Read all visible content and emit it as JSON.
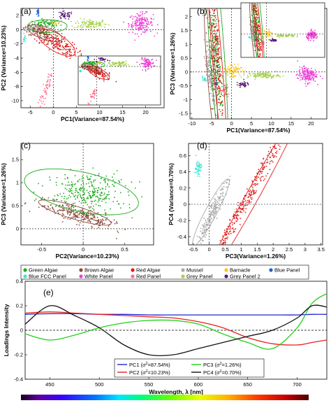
{
  "colors": {
    "green_algae": "#1faa1f",
    "brown_algae": "#8b4a3c",
    "red_algae": "#e01b1b",
    "mussel": "#a9a9a9",
    "barnacle": "#f5c518",
    "blue_panel": "#1f5fd0",
    "blue_fcc_panel": "#3ee6d2",
    "white_panel": "#ee3fd6",
    "red_panel": "#ff6f8e",
    "grey_panel": "#a6d24a",
    "grey_panel_2": "#5a1a7a",
    "pc1": "#1f24d6",
    "pc2": "#e8201b",
    "pc3": "#22d11a",
    "pc4": "#111111"
  },
  "legend": {
    "items": [
      {
        "label": "Green Algae",
        "color": "#1faa1f"
      },
      {
        "label": "Brown Algae",
        "color": "#8b4a3c"
      },
      {
        "label": "Red Algae",
        "color": "#e01b1b"
      },
      {
        "label": "Mussel",
        "color": "#a9a9a9"
      },
      {
        "label": "Barnacle",
        "color": "#f5c518"
      },
      {
        "label": "Blue Panel",
        "color": "#1f5fd0"
      },
      {
        "label": "Blue FCC Panel",
        "color": "#3ee6d2"
      },
      {
        "label": "White Panel",
        "color": "#ee3fd6"
      },
      {
        "label": "Red Panel",
        "color": "#ff6f8e"
      },
      {
        "label": "Grey Panel",
        "color": "#a6d24a"
      },
      {
        "label": "Grey Panel 2",
        "color": "#5a1a7a"
      }
    ]
  },
  "chart_data": [
    {
      "panel": "(a)",
      "type": "scatter",
      "xlabel": "PC1(Variance=87.54%)",
      "ylabel": "PC2 (Variance=10.23%)",
      "xticks": [
        -5,
        0,
        5,
        10,
        15,
        20
      ],
      "yticks": [
        -10,
        -8,
        -6,
        -4,
        -2,
        0,
        2
      ],
      "xlim": [
        -7,
        24
      ],
      "ylim": [
        -11,
        3
      ],
      "clusters": [
        {
          "name": "Green Algae",
          "cx": -1.5,
          "cy": 0.8,
          "sx": 1.5,
          "sy": 0.3,
          "rot": 0,
          "n": 80
        },
        {
          "name": "Grey Panel",
          "cx": 8,
          "cy": 0.8,
          "sx": 1.8,
          "sy": 0.35,
          "rot": 0,
          "n": 110
        },
        {
          "name": "White Panel",
          "cx": 19,
          "cy": 0.9,
          "sx": 1.3,
          "sy": 0.7,
          "rot": 0,
          "n": 170
        },
        {
          "name": "Grey Panel 2",
          "cx": 2.5,
          "cy": 2.0,
          "sx": 0.9,
          "sy": 0.3,
          "rot": 0,
          "n": 45
        },
        {
          "name": "Blue Panel",
          "cx": -3.3,
          "cy": 2.5,
          "sx": 0.12,
          "sy": 0.35,
          "rot": 0,
          "n": 25
        },
        {
          "name": "Mussel",
          "cx": -4.3,
          "cy": 0.1,
          "sx": 0.9,
          "sy": 0.25,
          "rot": 0,
          "n": 60
        },
        {
          "name": "Blue FCC Panel",
          "cx": -6.2,
          "cy": -1.3,
          "sx": 0.2,
          "sy": 0.2,
          "rot": 0,
          "n": 12
        },
        {
          "name": "Red Panel",
          "cx": -1.5,
          "cy": -8.2,
          "sx": 0.35,
          "sy": 1.3,
          "rot": -30,
          "n": 60
        },
        {
          "name": "Brown Algae",
          "cx": -2.3,
          "cy": -0.6,
          "sx": 2.0,
          "sy": 0.45,
          "rot": -12,
          "n": 120
        },
        {
          "name": "Red Algae",
          "cx": 0.6,
          "cy": -1.9,
          "sx": 2.4,
          "sy": 0.6,
          "rot": -18,
          "n": 170
        },
        {
          "name": "Barnacle",
          "cx": 0.5,
          "cy": 0.9,
          "sx": 0.6,
          "sy": 0.2,
          "rot": 0,
          "n": 12
        }
      ],
      "ellipses": [
        {
          "color": "green",
          "cx": -1.3,
          "cy": 0.5,
          "rx": 4.3,
          "ry": 0.9,
          "rot": 0
        },
        {
          "color": "brown",
          "cx": -1.8,
          "cy": -0.5,
          "rx": 3.8,
          "ry": 0.9,
          "rot": -12
        },
        {
          "color": "red",
          "cx": 0.6,
          "cy": -1.8,
          "rx": 4.4,
          "ry": 1.3,
          "rot": -20
        }
      ],
      "inset": true
    },
    {
      "panel": "(b)",
      "type": "scatter",
      "xlabel": "PC1(Variance=87.54%)",
      "ylabel": "PC3 (Variance=1.26%)",
      "xticks": [
        -10,
        -5,
        0,
        5,
        10,
        15,
        20
      ],
      "yticks": [
        -1.5,
        -1,
        -0.5,
        0,
        0.5,
        1,
        1.5,
        2
      ],
      "xlim": [
        -10.5,
        24
      ],
      "ylim": [
        -1.7,
        2.3
      ],
      "clusters": [
        {
          "name": "Green Algae",
          "cx": -4.0,
          "cy": 0.7,
          "sx": 1.2,
          "sy": 0.5,
          "rot": -60,
          "n": 220
        },
        {
          "name": "Brown Algae",
          "cx": -5.0,
          "cy": 0.1,
          "sx": 0.9,
          "sy": 0.4,
          "rot": -60,
          "n": 80
        },
        {
          "name": "Red Algae",
          "cx": -3.6,
          "cy": 0.6,
          "sx": 1.4,
          "sy": 0.35,
          "rot": -58,
          "n": 150
        },
        {
          "name": "Mussel",
          "cx": -5.5,
          "cy": -0.1,
          "sx": 0.8,
          "sy": 0.25,
          "rot": -40,
          "n": 110
        },
        {
          "name": "Barnacle",
          "cx": 0.0,
          "cy": 0.05,
          "sx": 1.3,
          "sy": 0.15,
          "rot": 0,
          "n": 70
        },
        {
          "name": "Grey Panel",
          "cx": 8.0,
          "cy": -0.12,
          "sx": 2.0,
          "sy": 0.05,
          "rot": 0,
          "n": 110
        },
        {
          "name": "White Panel",
          "cx": 19.0,
          "cy": -0.1,
          "sx": 1.2,
          "sy": 0.14,
          "rot": 0,
          "n": 170
        },
        {
          "name": "Grey Panel 2",
          "cx": 2.8,
          "cy": -0.45,
          "sx": 0.8,
          "sy": 0.05,
          "rot": 0,
          "n": 40
        },
        {
          "name": "Red Panel",
          "cx": -1.5,
          "cy": -0.7,
          "sx": 0.35,
          "sy": 0.12,
          "rot": 0,
          "n": 40
        },
        {
          "name": "Blue Panel",
          "cx": -4.0,
          "cy": -0.42,
          "sx": 0.2,
          "sy": 0.05,
          "rot": 0,
          "n": 18
        },
        {
          "name": "Blue FCC Panel",
          "cx": -7.0,
          "cy": -0.25,
          "sx": 0.2,
          "sy": 0.05,
          "rot": 0,
          "n": 12
        }
      ],
      "ellipses": [
        {
          "color": "green",
          "cx": -3.7,
          "cy": 0.75,
          "rx": 5.0,
          "ry": 1.6,
          "rot": -60
        },
        {
          "color": "red",
          "cx": -3.7,
          "cy": 0.55,
          "rx": 4.2,
          "ry": 1.0,
          "rot": -58
        },
        {
          "color": "brown",
          "cx": -5.2,
          "cy": 0.15,
          "rx": 3.0,
          "ry": 0.9,
          "rot": -60
        }
      ],
      "inset": true
    },
    {
      "panel": "(c)",
      "type": "scatter",
      "xlabel": "PC2(Variance=10.23%)",
      "ylabel": "PC3 (Variance=1.26%)",
      "xticks": [
        -0.5,
        0,
        0.5
      ],
      "yticks": [
        0,
        0.5,
        1,
        1.5
      ],
      "xlim": [
        -0.75,
        0.85
      ],
      "ylim": [
        -0.35,
        1.85
      ],
      "clusters": [
        {
          "name": "Green Algae",
          "cx": 0.05,
          "cy": 0.8,
          "sx": 0.22,
          "sy": 0.2,
          "rot": -20,
          "n": 300
        },
        {
          "name": "Brown Algae",
          "cx": -0.05,
          "cy": 0.3,
          "sx": 0.25,
          "sy": 0.08,
          "rot": -28,
          "n": 260
        }
      ],
      "ellipses": [
        {
          "color": "green",
          "cx": -0.02,
          "cy": 0.8,
          "rx": 0.75,
          "ry": 0.4,
          "rot": -28
        },
        {
          "color": "brown",
          "cx": -0.1,
          "cy": 0.35,
          "rx": 0.5,
          "ry": 0.13,
          "rot": -30
        }
      ],
      "inset": false
    },
    {
      "panel": "(d)",
      "type": "scatter",
      "xlabel": "PC3(Variance=1.26%)",
      "ylabel": "PC4 (Variance=0.70%)",
      "xticks": [
        -0.5,
        0,
        0.5,
        1,
        1.5,
        2,
        2.5,
        3,
        3.5
      ],
      "yticks": [
        -0.4,
        -0.2,
        0,
        0.2,
        0.4,
        0.6
      ],
      "xlim": [
        -0.65,
        3.55
      ],
      "ylim": [
        -0.5,
        0.75
      ],
      "clusters": [
        {
          "name": "Red Algae",
          "cx": 1.3,
          "cy": 0.15,
          "sx": 0.8,
          "sy": 0.05,
          "rot": 35,
          "n": 300
        },
        {
          "name": "Mussel",
          "cx": 0.1,
          "cy": -0.1,
          "sx": 0.3,
          "sy": 0.05,
          "rot": 40,
          "n": 200
        },
        {
          "name": "Blue FCC Panel",
          "cx": -0.35,
          "cy": 0.45,
          "sx": 0.05,
          "sy": 0.05,
          "rot": 0,
          "n": 60
        }
      ],
      "ellipses": [
        {
          "color": "red",
          "cx": 1.35,
          "cy": 0.1,
          "rx": 1.9,
          "ry": 0.13,
          "rot": 35
        },
        {
          "color": "grey",
          "cx": 0.05,
          "cy": -0.1,
          "rx": 0.7,
          "ry": 0.12,
          "rot": 35
        }
      ],
      "inset": false
    },
    {
      "panel": "(e)",
      "type": "line",
      "xlabel": "Wavelength, λ [nm]",
      "ylabel": "Loadings Intensity",
      "xlim": [
        425,
        730
      ],
      "ylim": [
        -0.4,
        0.4
      ],
      "xticks": [
        450,
        500,
        550,
        600,
        650,
        700
      ],
      "yticks": [
        -0.4,
        -0.2,
        0,
        0.2,
        0.4
      ],
      "x": [
        425,
        450,
        475,
        500,
        525,
        550,
        575,
        600,
        625,
        650,
        675,
        700,
        715,
        730
      ],
      "series": [
        {
          "name": "PC1 (σ²=87.54%)",
          "legend": [
            "PC1 (",
            "=87.54%)"
          ],
          "color": "#1f24d6",
          "values": [
            0.13,
            0.135,
            0.135,
            0.13,
            0.13,
            0.125,
            0.125,
            0.125,
            0.125,
            0.125,
            0.125,
            0.125,
            0.13,
            0.13
          ]
        },
        {
          "name": "PC2 (σ²=10.23%)",
          "legend": [
            "PC2 (",
            "=10.23%)"
          ],
          "color": "#e8201b",
          "values": [
            0.14,
            0.15,
            0.14,
            0.13,
            0.12,
            0.11,
            0.1,
            0.07,
            0.02,
            -0.06,
            -0.11,
            -0.12,
            -0.1,
            -0.08
          ]
        },
        {
          "name": "PC3 (σ²=1.26%)",
          "legend": [
            "PC3 (",
            "=1.26%)"
          ],
          "color": "#22d11a",
          "values": [
            -0.03,
            -0.08,
            -0.04,
            0.02,
            0.06,
            0.08,
            0.08,
            0.05,
            -0.03,
            -0.1,
            -0.15,
            0.02,
            0.22,
            0.3
          ]
        },
        {
          "name": "PC4 (σ²=0.70%)",
          "legend": [
            "PC4 (",
            "=0.70%)"
          ],
          "color": "#111111",
          "values": [
            0.05,
            0.2,
            0.12,
            0.02,
            -0.12,
            -0.2,
            -0.2,
            -0.15,
            -0.1,
            -0.05,
            0.0,
            0.1,
            0.2,
            0.19
          ]
        }
      ]
    }
  ],
  "spectrum_bar": {
    "from_nm": 380,
    "to_nm": 750
  }
}
